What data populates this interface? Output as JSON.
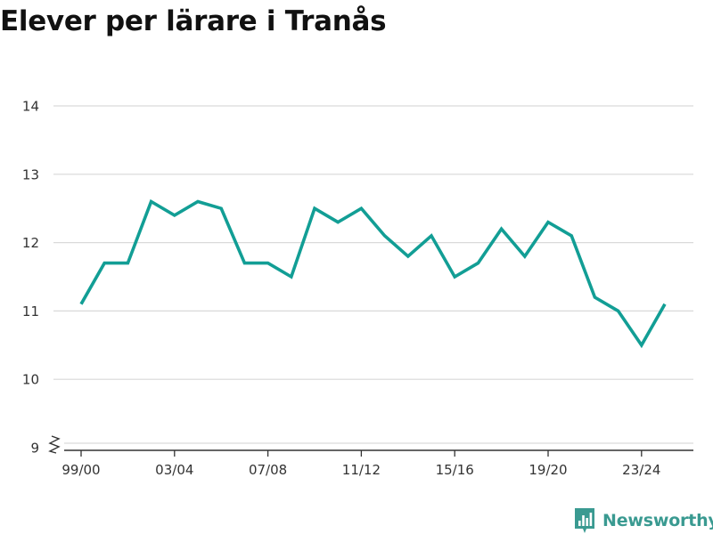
{
  "chart_data": {
    "type": "line",
    "title": "Elever per lärare i Tranås",
    "xlabel": "",
    "ylabel": "",
    "x": [
      "99/00",
      "00/01",
      "01/02",
      "02/03",
      "03/04",
      "04/05",
      "05/06",
      "06/07",
      "07/08",
      "08/09",
      "09/10",
      "10/11",
      "11/12",
      "12/13",
      "13/14",
      "14/15",
      "15/16",
      "16/17",
      "17/18",
      "18/19",
      "19/20",
      "20/21",
      "21/22",
      "22/23",
      "23/24",
      "24/25"
    ],
    "x_tick_labels": [
      "99/00",
      "03/04",
      "07/08",
      "11/12",
      "15/16",
      "19/20",
      "23/24"
    ],
    "y_ticks": [
      9,
      10,
      11,
      12,
      13,
      14
    ],
    "ylim": [
      9,
      14
    ],
    "axis_break": true,
    "grid": true,
    "series": [
      {
        "color": "#129e95",
        "values": [
          11.1,
          11.7,
          11.7,
          12.6,
          12.4,
          12.6,
          12.5,
          11.7,
          11.7,
          11.5,
          12.5,
          12.3,
          12.5,
          12.1,
          11.8,
          12.1,
          11.5,
          11.7,
          12.2,
          11.8,
          12.3,
          12.1,
          11.2,
          11.0,
          10.5,
          11.1
        ]
      }
    ]
  },
  "brand": {
    "name": "Newsworthy",
    "color": "#3a9a91"
  }
}
